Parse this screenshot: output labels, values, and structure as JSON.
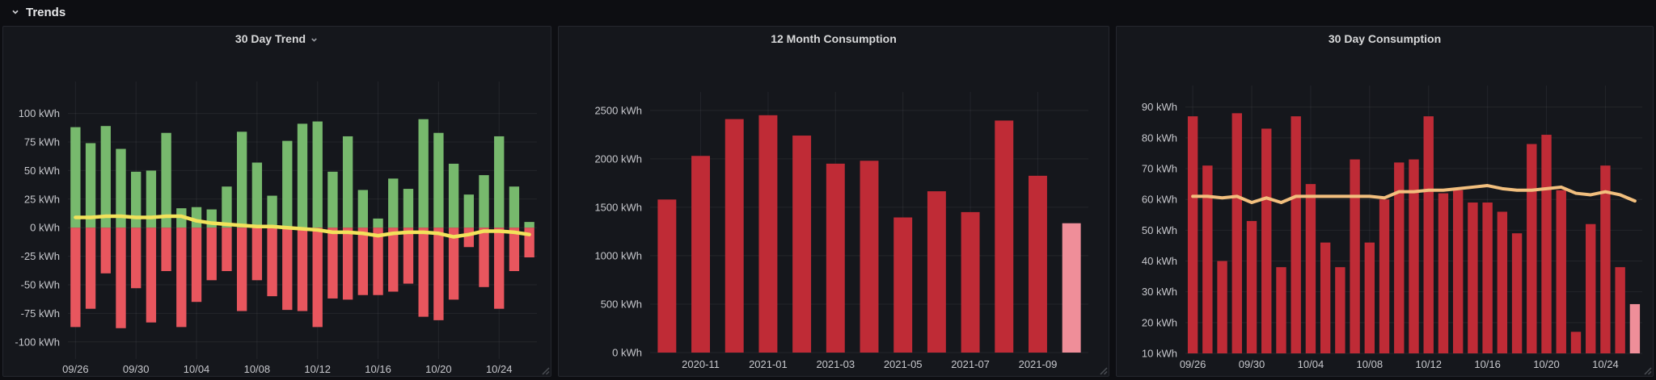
{
  "section": {
    "title": "Trends",
    "collapse_icon": "chevron-down",
    "state": "expanded"
  },
  "colors": {
    "page_background": "#0D0E12",
    "panel_background": "#15171C",
    "panel_border": "#25272E",
    "grid": "rgba(204,204,220,0.08)",
    "axis_text": "#C7C8CD",
    "title_text": "#D8D9DA",
    "positive_bar_green": "#77B96D",
    "negative_bar_red": "#E8565E",
    "trend_line_yellow": "#F2E25B",
    "consumption_bar_dark_red": "#BF2B36",
    "partial_bar_pink": "#EF8E99",
    "average_line_orange": "#F2BF7E"
  },
  "panels": [
    {
      "title": "30 Day Trend",
      "has_menu_chevron": true
    },
    {
      "title": "12 Month Consumption",
      "has_menu_chevron": false
    },
    {
      "title": "30 Day Consumption",
      "has_menu_chevron": false
    }
  ],
  "chart_data": [
    {
      "type": "bar",
      "title": "30 Day Trend",
      "unit": "kWh",
      "ylim": [
        -115,
        128
      ],
      "baseline": 0,
      "grid": true,
      "legend": "none",
      "bar_ratio": 0.66,
      "yticks": [
        100,
        75,
        50,
        25,
        0,
        -25,
        -50,
        -75,
        -100
      ],
      "x": [
        "09/26",
        "09/27",
        "09/28",
        "09/29",
        "09/30",
        "10/01",
        "10/02",
        "10/03",
        "10/04",
        "10/05",
        "10/06",
        "10/07",
        "10/08",
        "10/09",
        "10/10",
        "10/11",
        "10/12",
        "10/13",
        "10/14",
        "10/15",
        "10/16",
        "10/17",
        "10/18",
        "10/19",
        "10/20",
        "10/21",
        "10/22",
        "10/23",
        "10/24",
        "10/25",
        "10/26"
      ],
      "xticks": [
        "09/26",
        "09/30",
        "10/04",
        "10/08",
        "10/12",
        "10/16",
        "10/20",
        "10/24"
      ],
      "series": [
        {
          "name": "positive",
          "type": "bar",
          "color": "#77B96D",
          "values": [
            88,
            74,
            89,
            69,
            49,
            50,
            83,
            17,
            18,
            16,
            36,
            84,
            57,
            28,
            76,
            91,
            93,
            49,
            80,
            33,
            8,
            43,
            34,
            95,
            83,
            56,
            29,
            46,
            80,
            36,
            5
          ]
        },
        {
          "name": "negative",
          "type": "bar",
          "color": "#E8565E",
          "values": [
            -87,
            -71,
            -40,
            -88,
            -53,
            -83,
            -38,
            -87,
            -65,
            -46,
            -38,
            -73,
            -46,
            -60,
            -72,
            -73,
            -87,
            -62,
            -63,
            -59,
            -59,
            -56,
            -49,
            -78,
            -81,
            -63,
            -17,
            -52,
            -71,
            -38,
            -26
          ]
        },
        {
          "name": "trend-line",
          "type": "line",
          "color": "#F2E25B",
          "width": 4.5,
          "values": [
            9,
            9,
            10,
            10,
            9,
            9,
            10,
            10,
            6,
            4,
            3,
            2,
            1,
            1,
            0,
            -1,
            -2,
            -4,
            -4,
            -5,
            -7,
            -5,
            -4,
            -4,
            -5,
            -8,
            -6,
            -3,
            -3,
            -4,
            -6
          ]
        }
      ]
    },
    {
      "type": "bar",
      "title": "12 Month Consumption",
      "unit": "kWh",
      "ylim": [
        0,
        2690
      ],
      "baseline": 0,
      "grid": true,
      "legend": "none",
      "bar_ratio": 0.55,
      "yticks": [
        2500,
        2000,
        1500,
        1000,
        500,
        0
      ],
      "x": [
        "2020-10",
        "2020-11",
        "2020-12",
        "2021-01",
        "2021-02",
        "2021-03",
        "2021-04",
        "2021-05",
        "2021-06",
        "2021-07",
        "2021-08",
        "2021-09",
        "2021-10"
      ],
      "xticks": [
        "2020-11",
        "2021-01",
        "2021-03",
        "2021-05",
        "2021-07",
        "2021-09"
      ],
      "series": [
        {
          "name": "monthly-consumption",
          "type": "bar",
          "color": "#BF2B36",
          "last_color": "#EF8E99",
          "values": [
            1580,
            2030,
            2410,
            2450,
            2240,
            1950,
            1980,
            1395,
            1665,
            1450,
            2395,
            1825,
            1335
          ]
        }
      ]
    },
    {
      "type": "bar",
      "title": "30 Day Consumption",
      "unit": "kWh",
      "ylim": [
        10,
        97
      ],
      "baseline": 10,
      "grid": true,
      "legend": "none",
      "bar_ratio": 0.68,
      "yticks": [
        90,
        80,
        70,
        60,
        50,
        40,
        30,
        20,
        10
      ],
      "x": [
        "09/26",
        "09/27",
        "09/28",
        "09/29",
        "09/30",
        "10/01",
        "10/02",
        "10/03",
        "10/04",
        "10/05",
        "10/06",
        "10/07",
        "10/08",
        "10/09",
        "10/10",
        "10/11",
        "10/12",
        "10/13",
        "10/14",
        "10/15",
        "10/16",
        "10/17",
        "10/18",
        "10/19",
        "10/20",
        "10/21",
        "10/22",
        "10/23",
        "10/24",
        "10/25",
        "10/26"
      ],
      "xticks": [
        "09/26",
        "09/30",
        "10/04",
        "10/08",
        "10/12",
        "10/16",
        "10/20",
        "10/24"
      ],
      "series": [
        {
          "name": "daily-consumption",
          "type": "bar",
          "color": "#BF2B36",
          "last_color": "#EF8E99",
          "values": [
            87,
            71,
            40,
            88,
            53,
            83,
            38,
            87,
            65,
            46,
            38,
            73,
            46,
            60,
            72,
            73,
            87,
            62,
            63,
            59,
            59,
            56,
            49,
            78,
            81,
            63,
            17,
            52,
            71,
            38,
            26
          ]
        },
        {
          "name": "average-line",
          "type": "line",
          "color": "#F2BF7E",
          "width": 4,
          "values": [
            61,
            61,
            60.5,
            61,
            59,
            60.5,
            59,
            61,
            61,
            61,
            61,
            61,
            61,
            60.5,
            62.5,
            62.5,
            63,
            63,
            63.5,
            64,
            64.5,
            63.5,
            63,
            63,
            63.5,
            64,
            62,
            61.5,
            62.5,
            61.5,
            59.5
          ]
        }
      ]
    }
  ]
}
